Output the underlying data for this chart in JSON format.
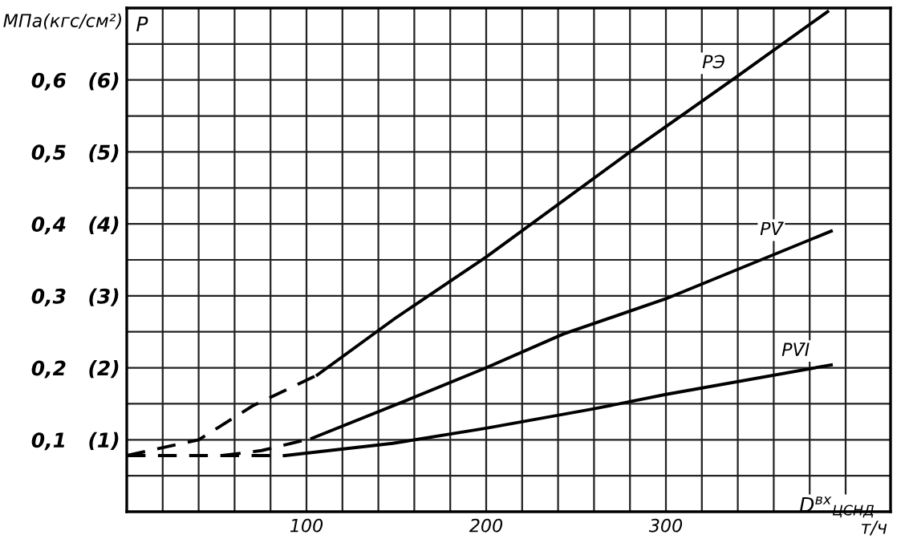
{
  "chart_data": {
    "type": "line",
    "ylabel": "МПа(кгс/см²)",
    "xlabel": "D$^{вх}$$_{ЦСНД}$",
    "annotations": [
      "P",
      "т/ч",
      {
        "text": "PЭ",
        "x": 338,
        "y": 0.602
      },
      {
        "text": "PV̄",
        "x": 370,
        "y": 0.37
      },
      {
        "text": "PV̄I",
        "x": 385,
        "y": 0.202
      }
    ],
    "xlim": [
      0,
      425
    ],
    "ylim": [
      0,
      0.7
    ],
    "xticks": [
      {
        "value": 20,
        "label": null
      },
      {
        "value": 40,
        "label": null
      },
      {
        "value": 60,
        "label": null
      },
      {
        "value": 80,
        "label": null
      },
      100,
      {
        "value": 120,
        "label": null
      },
      {
        "value": 140,
        "label": null
      },
      {
        "value": 160,
        "label": null
      },
      {
        "value": 180,
        "label": null
      },
      200,
      {
        "value": 220,
        "label": null
      },
      {
        "value": 240,
        "label": null
      },
      {
        "value": 260,
        "label": null
      },
      {
        "value": 280,
        "label": null
      },
      300,
      {
        "value": 320,
        "label": null
      },
      {
        "value": 340,
        "label": null
      },
      {
        "value": 360,
        "label": null
      },
      {
        "value": 380,
        "label": null
      },
      {
        "value": 400,
        "label": null
      }
    ],
    "yticks": [
      {
        "value": 0.05,
        "label": null
      },
      {
        "value": 0.1,
        "label": "0,1"
      },
      {
        "value": 0.15,
        "label": null
      },
      {
        "value": 0.2,
        "label": "0,2"
      },
      {
        "value": 0.25,
        "label": null
      },
      {
        "value": 0.3,
        "label": "0,3"
      },
      {
        "value": 0.35,
        "label": null
      },
      {
        "value": 0.4,
        "label": "0,4"
      },
      {
        "value": 0.45,
        "label": null
      },
      {
        "value": 0.5,
        "label": "0,5"
      },
      {
        "value": 0.55,
        "label": null
      },
      {
        "value": 0.6,
        "label": "0,6"
      },
      {
        "value": 0.65,
        "label": null
      }
    ],
    "y2lim": [
      0,
      7
    ],
    "y2ticks": [
      {
        "value": 1,
        "label": "(1)"
      },
      {
        "value": 2,
        "label": "(2)"
      },
      {
        "value": 3,
        "label": "(3)"
      },
      {
        "value": 4,
        "label": "(4)"
      },
      {
        "value": 5,
        "label": "(5)"
      },
      {
        "value": 6,
        "label": "(6)"
      }
    ],
    "grid": true,
    "legend": false,
    "marker": "none",
    "series": [
      {
        "color": "#000000",
        "line_style": "dashed",
        "x": [
          0,
          40,
          70,
          106
        ],
        "values": [
          0.078,
          0.1,
          0.147,
          0.19
        ]
      },
      {
        "color": "#000000",
        "line_style": "solid",
        "x": [
          106,
          150,
          200,
          280,
          338,
          390
        ],
        "values": [
          0.19,
          0.27,
          0.354,
          0.5,
          0.602,
          0.695
        ]
      },
      {
        "color": "#000000",
        "line_style": "dashed",
        "x": [
          53,
          75,
          100
        ],
        "values": [
          0.078,
          0.085,
          0.1
        ]
      },
      {
        "color": "#000000",
        "line_style": "solid",
        "x": [
          103,
          153,
          200,
          243,
          300,
          392
        ],
        "values": [
          0.102,
          0.152,
          0.2,
          0.247,
          0.296,
          0.39
        ]
      },
      {
        "color": "#000000",
        "line_style": "dashed",
        "x": [
          0,
          50,
          88
        ],
        "values": [
          0.078,
          0.078,
          0.078
        ]
      },
      {
        "color": "#000000",
        "line_style": "solid",
        "x": [
          88,
          148,
          200,
          260,
          300,
          392
        ],
        "values": [
          0.078,
          0.095,
          0.116,
          0.143,
          0.163,
          0.204
        ]
      }
    ]
  }
}
